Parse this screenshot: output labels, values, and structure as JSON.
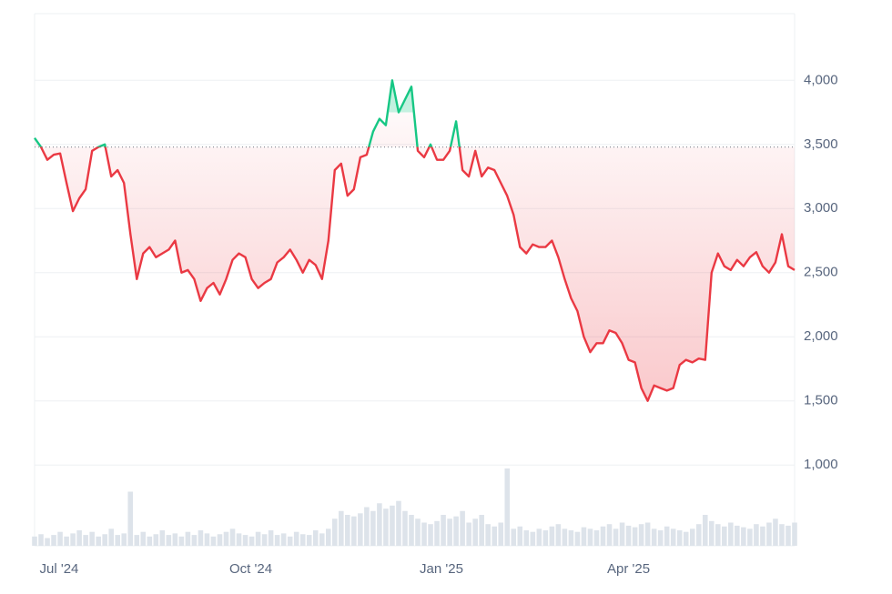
{
  "chart_data": {
    "type": "line",
    "xlim": [
      0,
      119
    ],
    "xticks": [
      {
        "value": 3.84,
        "label": "Jul '24"
      },
      {
        "value": 33.85,
        "label": "Oct '24"
      },
      {
        "value": 63.7,
        "label": "Jan '25"
      },
      {
        "value": 93.0,
        "label": "Apr '25"
      }
    ],
    "ylim": [
      370,
      4520
    ],
    "yticks": [
      {
        "value": 1000,
        "label": "1,000"
      },
      {
        "value": 1500,
        "label": "1,500"
      },
      {
        "value": 2000,
        "label": "2,000"
      },
      {
        "value": 2500,
        "label": "2,500"
      },
      {
        "value": 3000,
        "label": "3,000"
      },
      {
        "value": 3500,
        "label": "3,500"
      },
      {
        "value": 4000,
        "label": "4,000"
      }
    ],
    "grid": true,
    "baseline": 3480,
    "up_color": "#16c784",
    "down_color": "#ea3943",
    "series": [
      {
        "values": [
          3550,
          3480,
          3380,
          3420,
          3430,
          3200,
          2980,
          3080,
          3150,
          3450,
          3480,
          3500,
          3250,
          3300,
          3200,
          2800,
          2450,
          2650,
          2700,
          2620,
          2650,
          2680,
          2750,
          2500,
          2520,
          2450,
          2280,
          2380,
          2420,
          2330,
          2450,
          2600,
          2650,
          2620,
          2450,
          2380,
          2420,
          2450,
          2580,
          2620,
          2680,
          2600,
          2500,
          2600,
          2560,
          2450,
          2750,
          3300,
          3350,
          3100,
          3150,
          3400,
          3420,
          3600,
          3700,
          3650,
          4000,
          3750,
          3850,
          3950,
          3450,
          3400,
          3500,
          3380,
          3380,
          3450,
          3680,
          3300,
          3250,
          3450,
          3250,
          3320,
          3300,
          3200,
          3100,
          2950,
          2700,
          2650,
          2720,
          2700,
          2700,
          2750,
          2620,
          2450,
          2300,
          2200,
          2000,
          1880,
          1950,
          1950,
          2050,
          2030,
          1950,
          1820,
          1800,
          1600,
          1500,
          1620,
          1600,
          1580,
          1600,
          1780,
          1820,
          1800,
          1830,
          1820,
          2500,
          2650,
          2550,
          2520,
          2600,
          2550,
          2620,
          2660,
          2550,
          2500,
          2580,
          2800,
          2550,
          2520
        ]
      },
      {
        "type": "bar",
        "axis": "y2",
        "color": "#dde3ea",
        "values": [
          12,
          15,
          10,
          14,
          18,
          12,
          16,
          20,
          14,
          18,
          12,
          15,
          22,
          14,
          16,
          70,
          14,
          18,
          12,
          15,
          20,
          14,
          16,
          12,
          18,
          14,
          20,
          16,
          12,
          15,
          18,
          22,
          16,
          14,
          12,
          18,
          15,
          20,
          14,
          16,
          12,
          18,
          15,
          14,
          20,
          16,
          22,
          35,
          45,
          40,
          38,
          42,
          50,
          45,
          55,
          48,
          52,
          58,
          45,
          40,
          35,
          30,
          28,
          32,
          40,
          35,
          38,
          45,
          30,
          35,
          40,
          28,
          25,
          30,
          100,
          22,
          25,
          20,
          18,
          22,
          20,
          25,
          28,
          22,
          20,
          18,
          24,
          22,
          20,
          25,
          28,
          22,
          30,
          26,
          24,
          28,
          30,
          22,
          20,
          25,
          22,
          20,
          18,
          22,
          28,
          40,
          32,
          28,
          25,
          30,
          26,
          24,
          22,
          28,
          25,
          30,
          35,
          28,
          26,
          30
        ]
      }
    ],
    "y2lim": [
      0,
      100
    ]
  }
}
